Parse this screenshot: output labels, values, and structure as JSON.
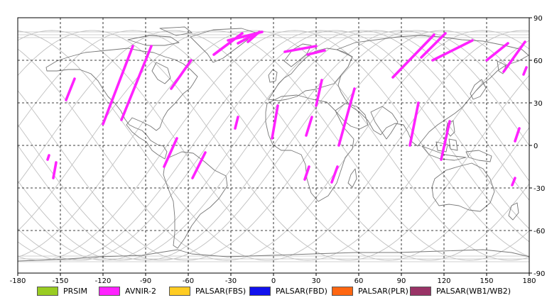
{
  "map": {
    "x_ticks": [
      "-180",
      "-150",
      "-120",
      "-90",
      "-60",
      "-30",
      "0",
      "30",
      "60",
      "90",
      "120",
      "150",
      "180"
    ],
    "y_ticks": [
      "90",
      "60",
      "30",
      "0",
      "-30",
      "-60",
      "-90"
    ],
    "lon_range": [
      -180,
      180
    ],
    "lat_range": [
      -90,
      90
    ],
    "grid": true,
    "colors": {
      "coastline": "#777777",
      "orbit_track": "#c0c0c0",
      "grid": "#000000"
    }
  },
  "legend": [
    {
      "label": "PRSIM",
      "color": "#99cc22"
    },
    {
      "label": "AVNIR-2",
      "color": "#ff22ff"
    },
    {
      "label": "PALSAR(FBS)",
      "color": "#ffcc22"
    },
    {
      "label": "PALSAR(FBD)",
      "color": "#1111ee"
    },
    {
      "label": "PALSAR(PLR)",
      "color": "#ff6611"
    },
    {
      "label": "PALSAR(WB1/WB2)",
      "color": "#993366"
    }
  ],
  "avnir_segments": [
    [
      [
        -158,
        -7
      ],
      [
        -159,
        -10
      ]
    ],
    [
      [
        -153,
        -12
      ],
      [
        -155,
        -23
      ]
    ],
    [
      [
        -140,
        47
      ],
      [
        -146,
        32
      ]
    ],
    [
      [
        -99,
        70
      ],
      [
        -120,
        15
      ]
    ],
    [
      [
        -86,
        70
      ],
      [
        -107,
        18
      ]
    ],
    [
      [
        -58,
        60
      ],
      [
        -72,
        40
      ]
    ],
    [
      [
        -68,
        5
      ],
      [
        -77,
        -15
      ]
    ],
    [
      [
        -48,
        -5
      ],
      [
        -57,
        -23
      ]
    ],
    [
      [
        -22,
        79
      ],
      [
        -42,
        64
      ]
    ],
    [
      [
        -12,
        79
      ],
      [
        -25,
        72
      ]
    ],
    [
      [
        -8,
        80
      ],
      [
        -32,
        74
      ]
    ],
    [
      [
        -25,
        20
      ],
      [
        -27,
        12
      ]
    ],
    [
      [
        -10,
        80
      ],
      [
        -18,
        73
      ]
    ],
    [
      [
        3,
        28
      ],
      [
        -1,
        5
      ]
    ],
    [
      [
        30,
        70
      ],
      [
        8,
        66
      ]
    ],
    [
      [
        36,
        67
      ],
      [
        24,
        64
      ]
    ],
    [
      [
        34,
        46
      ],
      [
        30,
        28
      ]
    ],
    [
      [
        27,
        20
      ],
      [
        23,
        7
      ]
    ],
    [
      [
        25,
        -15
      ],
      [
        22,
        -24
      ]
    ],
    [
      [
        57,
        40
      ],
      [
        46,
        0
      ]
    ],
    [
      [
        45,
        -15
      ],
      [
        41,
        -26
      ]
    ],
    [
      [
        113,
        78
      ],
      [
        84,
        48
      ]
    ],
    [
      [
        121,
        79
      ],
      [
        104,
        62
      ]
    ],
    [
      [
        140,
        74
      ],
      [
        112,
        60
      ]
    ],
    [
      [
        102,
        30
      ],
      [
        96,
        0
      ]
    ],
    [
      [
        124,
        17
      ],
      [
        118,
        -10
      ]
    ],
    [
      [
        165,
        72
      ],
      [
        150,
        60
      ]
    ],
    [
      [
        177,
        73
      ],
      [
        162,
        52
      ]
    ],
    [
      [
        173,
        12
      ],
      [
        170,
        3
      ]
    ],
    [
      [
        178,
        55
      ],
      [
        176,
        50
      ]
    ],
    [
      [
        170,
        -23
      ],
      [
        168,
        -28
      ]
    ]
  ]
}
